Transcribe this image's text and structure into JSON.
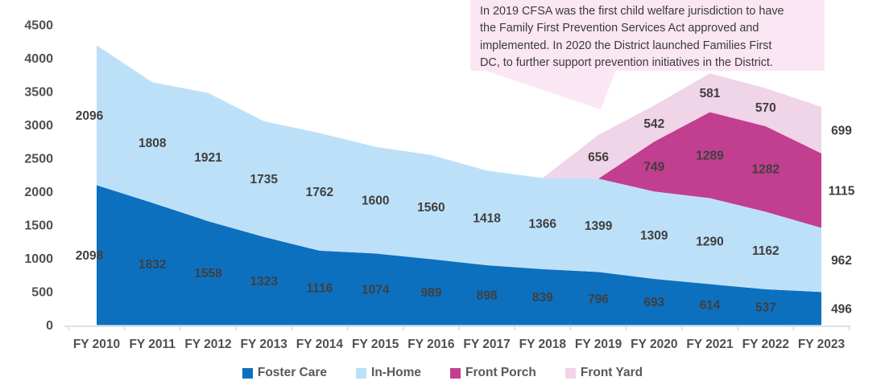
{
  "chart_data": {
    "type": "area",
    "stacked": true,
    "title": "",
    "xlabel": "",
    "ylabel": "",
    "grid": false,
    "legend_position": "bottom",
    "data_labels_shown": true,
    "categories": [
      "FY 2010",
      "FY 2011",
      "FY 2012",
      "FY 2013",
      "FY 2014",
      "FY 2015",
      "FY 2016",
      "FY 2017",
      "FY 2018",
      "FY 2019",
      "FY 2020",
      "FY 2021",
      "FY 2022",
      "FY 2023"
    ],
    "series": [
      {
        "name": "Foster Care",
        "color": "#0D70BF",
        "values": [
          2098,
          1832,
          1558,
          1323,
          1116,
          1074,
          989,
          898,
          839,
          796,
          693,
          614,
          537,
          496
        ]
      },
      {
        "name": "In-Home",
        "color": "#BDE0F9",
        "values": [
          2096,
          1808,
          1921,
          1735,
          1762,
          1600,
          1560,
          1418,
          1366,
          1399,
          1309,
          1290,
          1162,
          962
        ]
      },
      {
        "name": "Front Porch",
        "color": "#C23E8F",
        "values": [
          0,
          0,
          0,
          0,
          0,
          0,
          0,
          0,
          0,
          0,
          749,
          1289,
          1282,
          1115
        ]
      },
      {
        "name": "Front Yard",
        "color": "#F0D4E8",
        "values": [
          0,
          0,
          0,
          0,
          0,
          0,
          0,
          0,
          0,
          656,
          542,
          581,
          570,
          699
        ]
      }
    ],
    "y_axis": {
      "min": 0,
      "max": 4500,
      "step": 500,
      "ticks": [
        0,
        500,
        1000,
        1500,
        2000,
        2500,
        3000,
        3500,
        4000,
        4500
      ]
    },
    "colors": {
      "data_label_text": "#3f3f3f",
      "axis_text": "#4f4f4f",
      "axis_line": "#d9d9d9",
      "legend_text": "#595959"
    }
  },
  "annotation": {
    "background": "#FBE6F3",
    "text": "In 2019 CFSA was the first child welfare jurisdiction to have the Family First Prevention Services Act approved and implemented. In 2020 the District launched Families First DC, to further support prevention initiatives in the District.",
    "lines": [
      "In 2019 CFSA was the first child welfare jurisdiction to have",
      "the Family First Prevention Services Act approved and",
      "implemented. In 2020 the District launched Families First",
      "DC, to further support prevention initiatives in the District."
    ]
  }
}
